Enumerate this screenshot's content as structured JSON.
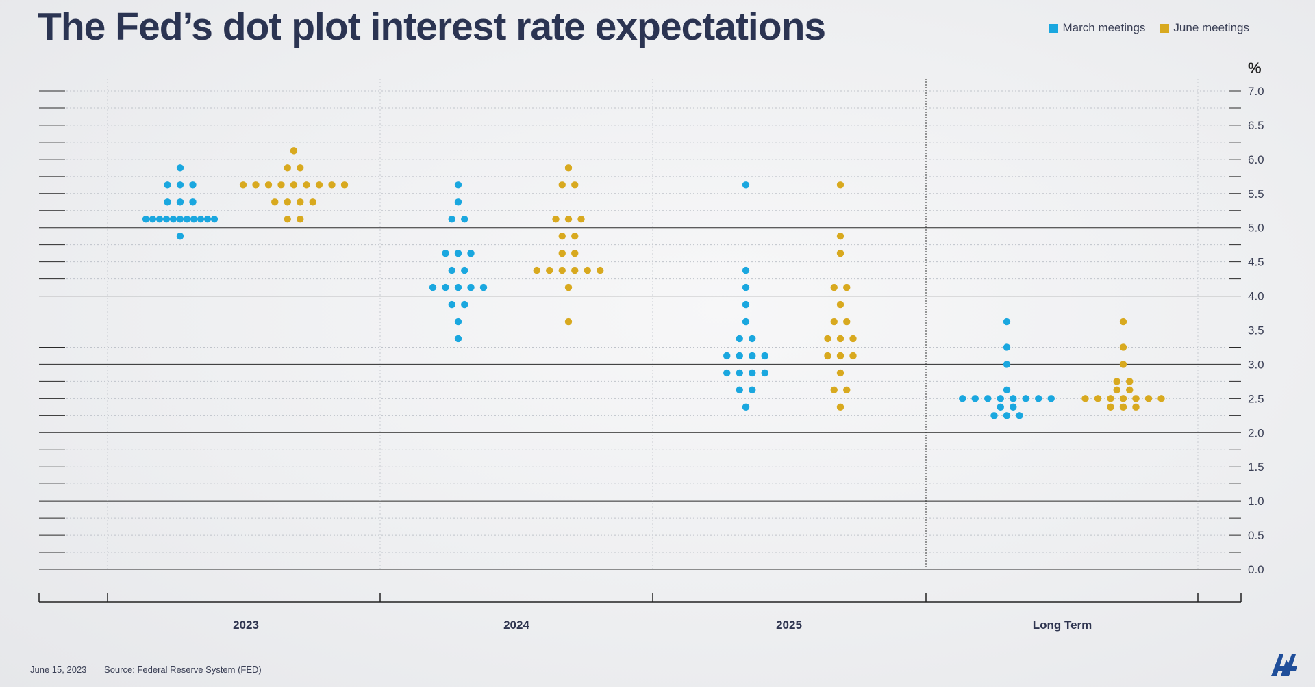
{
  "header": {
    "title": "The Fed’s dot plot interest rate expectations"
  },
  "legend": [
    {
      "label": "March meetings",
      "color": "#1aa7df"
    },
    {
      "label": "June meetings",
      "color": "#d8a91f"
    }
  ],
  "footer": {
    "date": "June 15, 2023",
    "source": "Source: Federal Reserve System (FED)"
  },
  "logo": {
    "text": "AA"
  },
  "chart_data": {
    "type": "scatter",
    "title": "The Fed’s dot plot interest rate expectations",
    "ylabel": "%",
    "ylim": [
      0,
      7
    ],
    "yticks": [
      "0.0",
      "0.5",
      "1.0",
      "1.5",
      "2.0",
      "2.5",
      "3.0",
      "3.5",
      "4.0",
      "4.5",
      "5.0",
      "5.5",
      "6.0",
      "6.5",
      "7.0"
    ],
    "categories": [
      "2023",
      "2024",
      "2025",
      "Long Term"
    ],
    "grid": true,
    "legend_position": "top-right",
    "series": [
      {
        "name": "March meetings",
        "color": "#1aa7df",
        "points": [
          {
            "x": "2023",
            "rates": [
              5.875,
              5.625,
              5.625,
              5.625,
              5.375,
              5.375,
              5.375,
              5.125,
              5.125,
              5.125,
              5.125,
              5.125,
              5.125,
              5.125,
              5.125,
              5.125,
              5.125,
              5.125,
              4.875
            ]
          },
          {
            "x": "2024",
            "rates": [
              5.625,
              5.375,
              5.125,
              5.125,
              4.625,
              4.625,
              4.625,
              4.375,
              4.375,
              4.125,
              4.125,
              4.125,
              4.125,
              4.125,
              3.875,
              3.875,
              3.625,
              3.375
            ]
          },
          {
            "x": "2025",
            "rates": [
              5.625,
              4.375,
              4.125,
              3.875,
              3.625,
              3.375,
              3.375,
              3.125,
              3.125,
              3.125,
              3.125,
              2.875,
              2.875,
              2.875,
              2.875,
              2.625,
              2.625,
              2.375
            ]
          },
          {
            "x": "Long Term",
            "rates": [
              3.625,
              3.25,
              3.0,
              2.625,
              2.5,
              2.5,
              2.5,
              2.5,
              2.5,
              2.5,
              2.5,
              2.5,
              2.375,
              2.375,
              2.25,
              2.25,
              2.25
            ]
          }
        ]
      },
      {
        "name": "June meetings",
        "color": "#d8a91f",
        "points": [
          {
            "x": "2023",
            "rates": [
              6.125,
              5.875,
              5.875,
              5.625,
              5.625,
              5.625,
              5.625,
              5.625,
              5.625,
              5.625,
              5.625,
              5.625,
              5.375,
              5.375,
              5.375,
              5.375,
              5.125,
              5.125
            ]
          },
          {
            "x": "2024",
            "rates": [
              5.875,
              5.625,
              5.625,
              5.125,
              5.125,
              5.125,
              4.875,
              4.875,
              4.625,
              4.625,
              4.375,
              4.375,
              4.375,
              4.375,
              4.375,
              4.375,
              4.125,
              3.625
            ]
          },
          {
            "x": "2025",
            "rates": [
              5.625,
              4.875,
              4.625,
              4.125,
              4.125,
              3.875,
              3.625,
              3.625,
              3.375,
              3.375,
              3.375,
              3.125,
              3.125,
              3.125,
              2.875,
              2.625,
              2.625,
              2.375
            ]
          },
          {
            "x": "Long Term",
            "rates": [
              3.625,
              3.25,
              3.0,
              2.75,
              2.75,
              2.625,
              2.625,
              2.5,
              2.5,
              2.5,
              2.5,
              2.5,
              2.5,
              2.5,
              2.375,
              2.375,
              2.375
            ]
          }
        ]
      }
    ]
  }
}
